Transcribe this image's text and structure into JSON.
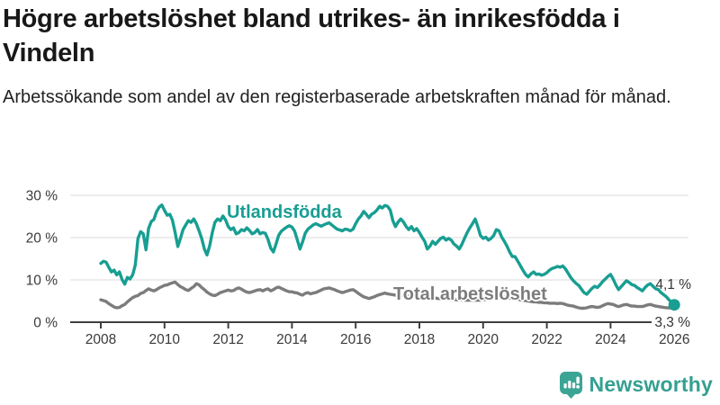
{
  "header": {
    "title": "Högre arbetslöshet bland utrikes- än inrikesfödda i Vindeln",
    "subtitle": "Arbetssökande som andel av den registerbaserade arbetskraften månad för månad."
  },
  "chart_data": {
    "type": "line",
    "title": "Högre arbetslöshet bland utrikes- än inrikesfödda i Vindeln",
    "subtitle": "Arbetssökande som andel av den registerbaserade arbetskraften månad för månad.",
    "unit": "%",
    "x_start_year": 2008,
    "x_step_months": 1,
    "x_ticks": [
      2008,
      2010,
      2012,
      2014,
      2016,
      2018,
      2020,
      2022,
      2024,
      2026
    ],
    "y_axis": [
      {
        "value": 30,
        "label": "30 %"
      },
      {
        "value": 20,
        "label": "20 %"
      },
      {
        "value": 10,
        "label": "10 %"
      },
      {
        "value": 0,
        "label": "0 %"
      }
    ],
    "ylim": [
      0,
      32
    ],
    "grid": "horizontal",
    "legend_position": "inline-labels",
    "grid_color": "#dbdbdb",
    "axis_color": "#3f3f3f",
    "tick_text_color": "#3a3a3a",
    "series": [
      {
        "name": "Utlandsfödda",
        "color": "#189e92",
        "end_label": "4,1 %",
        "end_value": 4.1,
        "values": [
          13.9,
          14.4,
          14.2,
          13.0,
          11.9,
          12.3,
          11.2,
          11.9,
          10.1,
          9.0,
          10.6,
          10.2,
          11.2,
          13.5,
          19.8,
          21.4,
          20.9,
          17.1,
          22.2,
          23.8,
          24.3,
          26.1,
          27.2,
          27.7,
          26.4,
          25.3,
          25.5,
          24.1,
          21.2,
          17.9,
          19.8,
          21.9,
          23.0,
          24.0,
          23.6,
          24.4,
          23.3,
          21.6,
          19.8,
          17.3,
          15.9,
          18.0,
          21.2,
          23.6,
          24.4,
          24.0,
          25.1,
          24.2,
          22.6,
          21.9,
          22.3,
          20.9,
          21.2,
          21.9,
          21.6,
          22.3,
          21.7,
          20.9,
          21.2,
          21.9,
          20.9,
          21.2,
          21.0,
          19.5,
          17.5,
          16.6,
          18.5,
          20.5,
          21.5,
          22.0,
          22.5,
          22.8,
          22.5,
          21.5,
          19.5,
          17.3,
          19.0,
          21.0,
          22.0,
          22.5,
          23.0,
          23.3,
          23.0,
          22.7,
          23.0,
          23.3,
          23.5,
          23.0,
          22.5,
          22.0,
          21.8,
          21.6,
          22.0,
          21.9,
          21.6,
          22.0,
          23.3,
          24.4,
          25.1,
          26.2,
          25.5,
          24.7,
          25.5,
          25.9,
          26.5,
          27.4,
          27.0,
          27.6,
          27.4,
          26.5,
          24.0,
          22.6,
          23.7,
          24.4,
          23.7,
          22.6,
          21.9,
          22.6,
          21.6,
          22.1,
          21.2,
          20.1,
          19.1,
          17.3,
          18.0,
          19.1,
          18.4,
          19.1,
          19.8,
          20.1,
          19.4,
          19.8,
          19.4,
          18.5,
          18.0,
          17.3,
          18.4,
          19.8,
          21.2,
          22.3,
          23.3,
          24.4,
          22.6,
          20.5,
          19.8,
          20.1,
          19.4,
          19.8,
          20.5,
          21.9,
          21.6,
          20.1,
          19.1,
          18.0,
          16.6,
          15.5,
          15.5,
          14.5,
          13.4,
          12.3,
          11.3,
          10.7,
          11.4,
          11.9,
          11.3,
          11.4,
          11.1,
          11.3,
          11.7,
          12.3,
          12.7,
          12.9,
          13.2,
          13.0,
          13.3,
          12.6,
          11.6,
          10.6,
          9.8,
          9.2,
          8.7,
          7.8,
          7.0,
          6.6,
          7.3,
          8.0,
          8.5,
          8.2,
          8.8,
          9.6,
          10.2,
          10.8,
          11.3,
          10.2,
          8.8,
          7.7,
          8.4,
          9.1,
          9.8,
          9.4,
          8.9,
          8.7,
          8.2,
          7.8,
          7.4,
          8.2,
          8.8,
          9.1,
          8.5,
          7.9,
          7.7,
          7.0,
          6.5,
          6.0,
          5.3,
          4.7,
          4.1
        ]
      },
      {
        "name": "Total arbetslöshet",
        "color": "#7c7c7c",
        "end_label": "3,3 %",
        "end_value": 3.3,
        "values": [
          5.3,
          5.1,
          4.9,
          4.4,
          4.0,
          3.6,
          3.4,
          3.5,
          3.9,
          4.2,
          4.8,
          5.3,
          5.8,
          6.1,
          6.3,
          6.8,
          7.0,
          7.5,
          7.9,
          7.6,
          7.4,
          7.7,
          8.1,
          8.4,
          8.7,
          8.8,
          9.1,
          9.3,
          9.5,
          8.9,
          8.4,
          8.1,
          7.7,
          7.5,
          8.0,
          8.4,
          9.1,
          8.8,
          8.2,
          7.7,
          7.1,
          6.7,
          6.4,
          6.3,
          6.6,
          7.0,
          7.2,
          7.4,
          7.6,
          7.4,
          7.5,
          7.9,
          8.1,
          7.8,
          7.4,
          7.1,
          7.0,
          7.2,
          7.4,
          7.6,
          7.7,
          7.4,
          7.7,
          7.9,
          7.4,
          7.7,
          8.1,
          8.3,
          8.0,
          7.7,
          7.4,
          7.2,
          7.2,
          7.0,
          6.9,
          6.6,
          6.4,
          6.8,
          7.0,
          6.7,
          6.9,
          7.0,
          7.3,
          7.6,
          7.9,
          8.0,
          8.1,
          7.9,
          7.7,
          7.4,
          7.2,
          7.0,
          7.2,
          7.4,
          7.6,
          7.7,
          7.3,
          6.8,
          6.4,
          6.0,
          5.8,
          5.6,
          5.8,
          6.0,
          6.3,
          6.5,
          6.7,
          6.9,
          6.7,
          6.6,
          6.5,
          6.4,
          6.4,
          6.3,
          6.3,
          6.2,
          6.2,
          6.1,
          6.1,
          6.0,
          6.0,
          5.9,
          5.9,
          5.8,
          5.8,
          5.7,
          5.7,
          5.6,
          5.6,
          5.5,
          5.5,
          5.4,
          5.4,
          5.4,
          5.3,
          5.3,
          5.3,
          5.2,
          5.2,
          5.2,
          5.2,
          5.2,
          5.2,
          5.2,
          5.3,
          5.4,
          5.6,
          5.8,
          6.0,
          6.1,
          6.1,
          6.0,
          5.9,
          5.8,
          5.7,
          5.6,
          5.5,
          5.4,
          5.3,
          5.2,
          5.1,
          5.0,
          4.9,
          4.8,
          4.8,
          4.7,
          4.7,
          4.6,
          4.6,
          4.5,
          4.5,
          4.5,
          4.4,
          4.5,
          4.4,
          4.2,
          4.0,
          3.9,
          3.8,
          3.6,
          3.4,
          3.3,
          3.3,
          3.4,
          3.6,
          3.7,
          3.6,
          3.5,
          3.6,
          3.9,
          4.2,
          4.4,
          4.3,
          4.2,
          3.9,
          3.7,
          3.9,
          4.1,
          4.2,
          4.0,
          3.8,
          3.8,
          3.7,
          3.7,
          3.7,
          3.9,
          4.1,
          4.2,
          4.0,
          3.8,
          3.7,
          3.6,
          3.5,
          3.4,
          3.4,
          3.3,
          3.3
        ]
      }
    ]
  },
  "footer": {
    "brand": "Newsworthy",
    "logo_icon": "bar-chart-speech-bubble",
    "brand_color": "#35a091",
    "icon_color": "#3ba495"
  }
}
